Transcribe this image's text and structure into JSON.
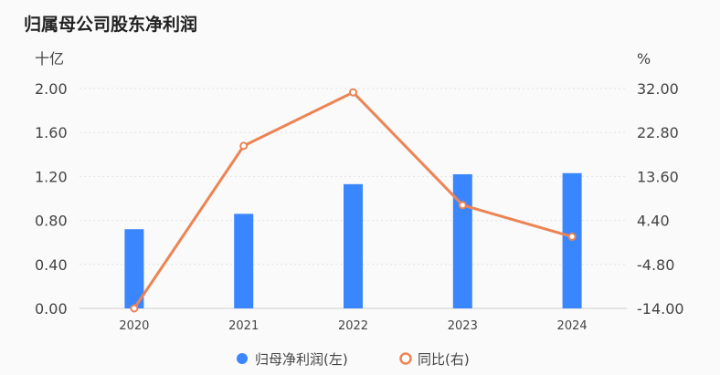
{
  "chart_data": {
    "type": "bar",
    "title": "归属母公司股东净利润",
    "categories": [
      "2020",
      "2021",
      "2022",
      "2023",
      "2024"
    ],
    "left_axis": {
      "unit": "十亿",
      "ticks": [
        "2.00",
        "1.60",
        "1.20",
        "0.80",
        "0.40",
        "0.00"
      ],
      "ylim": [
        0,
        2.0
      ]
    },
    "right_axis": {
      "unit": "%",
      "ticks": [
        "32.00",
        "22.80",
        "13.60",
        "4.40",
        "-4.80",
        "-14.00"
      ],
      "ylim": [
        -14.0,
        32.0
      ]
    },
    "series": [
      {
        "name": "归母净利润(左)",
        "type": "bar",
        "axis": "left",
        "color": "#3a86ff",
        "values": [
          0.72,
          0.86,
          1.13,
          1.22,
          1.23
        ]
      },
      {
        "name": "同比(右)",
        "type": "line",
        "axis": "right",
        "color": "#ec8454",
        "values": [
          -14.0,
          20.0,
          31.2,
          7.6,
          1.0
        ]
      }
    ],
    "grid": true,
    "legend_position": "bottom-center"
  }
}
